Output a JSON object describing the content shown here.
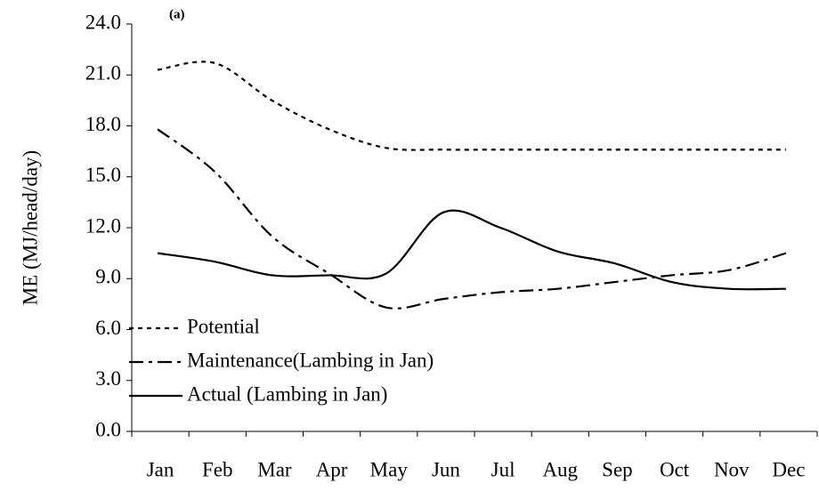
{
  "chart_data": {
    "type": "line",
    "annotation": "(a)",
    "y_label": "ME (MJ/head/day)",
    "categories": [
      "Jan",
      "Feb",
      "Mar",
      "Apr",
      "May",
      "Jun",
      "Jul",
      "Aug",
      "Sep",
      "Oct",
      "Nov",
      "Dec"
    ],
    "series": [
      {
        "name": "Potential",
        "color": "#000000",
        "dash": "5,5",
        "values": [
          21.3,
          21.7,
          19.5,
          17.8,
          16.7,
          16.6,
          16.6,
          16.6,
          16.6,
          16.6,
          16.6,
          16.6
        ]
      },
      {
        "name": "Maintenance(Lambing in Jan)",
        "color": "#000000",
        "dash": "16,6,4,6",
        "values": [
          17.8,
          15.3,
          11.5,
          9.3,
          7.3,
          7.8,
          8.2,
          8.4,
          8.8,
          9.2,
          9.5,
          10.5
        ]
      },
      {
        "name": "Actual (Lambing in Jan)",
        "color": "#000000",
        "dash": "none",
        "values": [
          10.5,
          10.0,
          9.2,
          9.2,
          9.3,
          12.9,
          12.0,
          10.6,
          9.9,
          8.8,
          8.4,
          8.4
        ]
      }
    ],
    "ylim": [
      0,
      24
    ],
    "yticks": [
      {
        "value": 0,
        "label": "0.0"
      },
      {
        "value": 3,
        "label": "3.0"
      },
      {
        "value": 6,
        "label": "6.0"
      },
      {
        "value": 9,
        "label": "9.0"
      },
      {
        "value": 12,
        "label": "12.0"
      },
      {
        "value": 15,
        "label": "15.0"
      },
      {
        "value": 18,
        "label": "18.0"
      },
      {
        "value": 21,
        "label": "21.0"
      },
      {
        "value": 24,
        "label": "24.0"
      }
    ],
    "legend": "lower left"
  }
}
